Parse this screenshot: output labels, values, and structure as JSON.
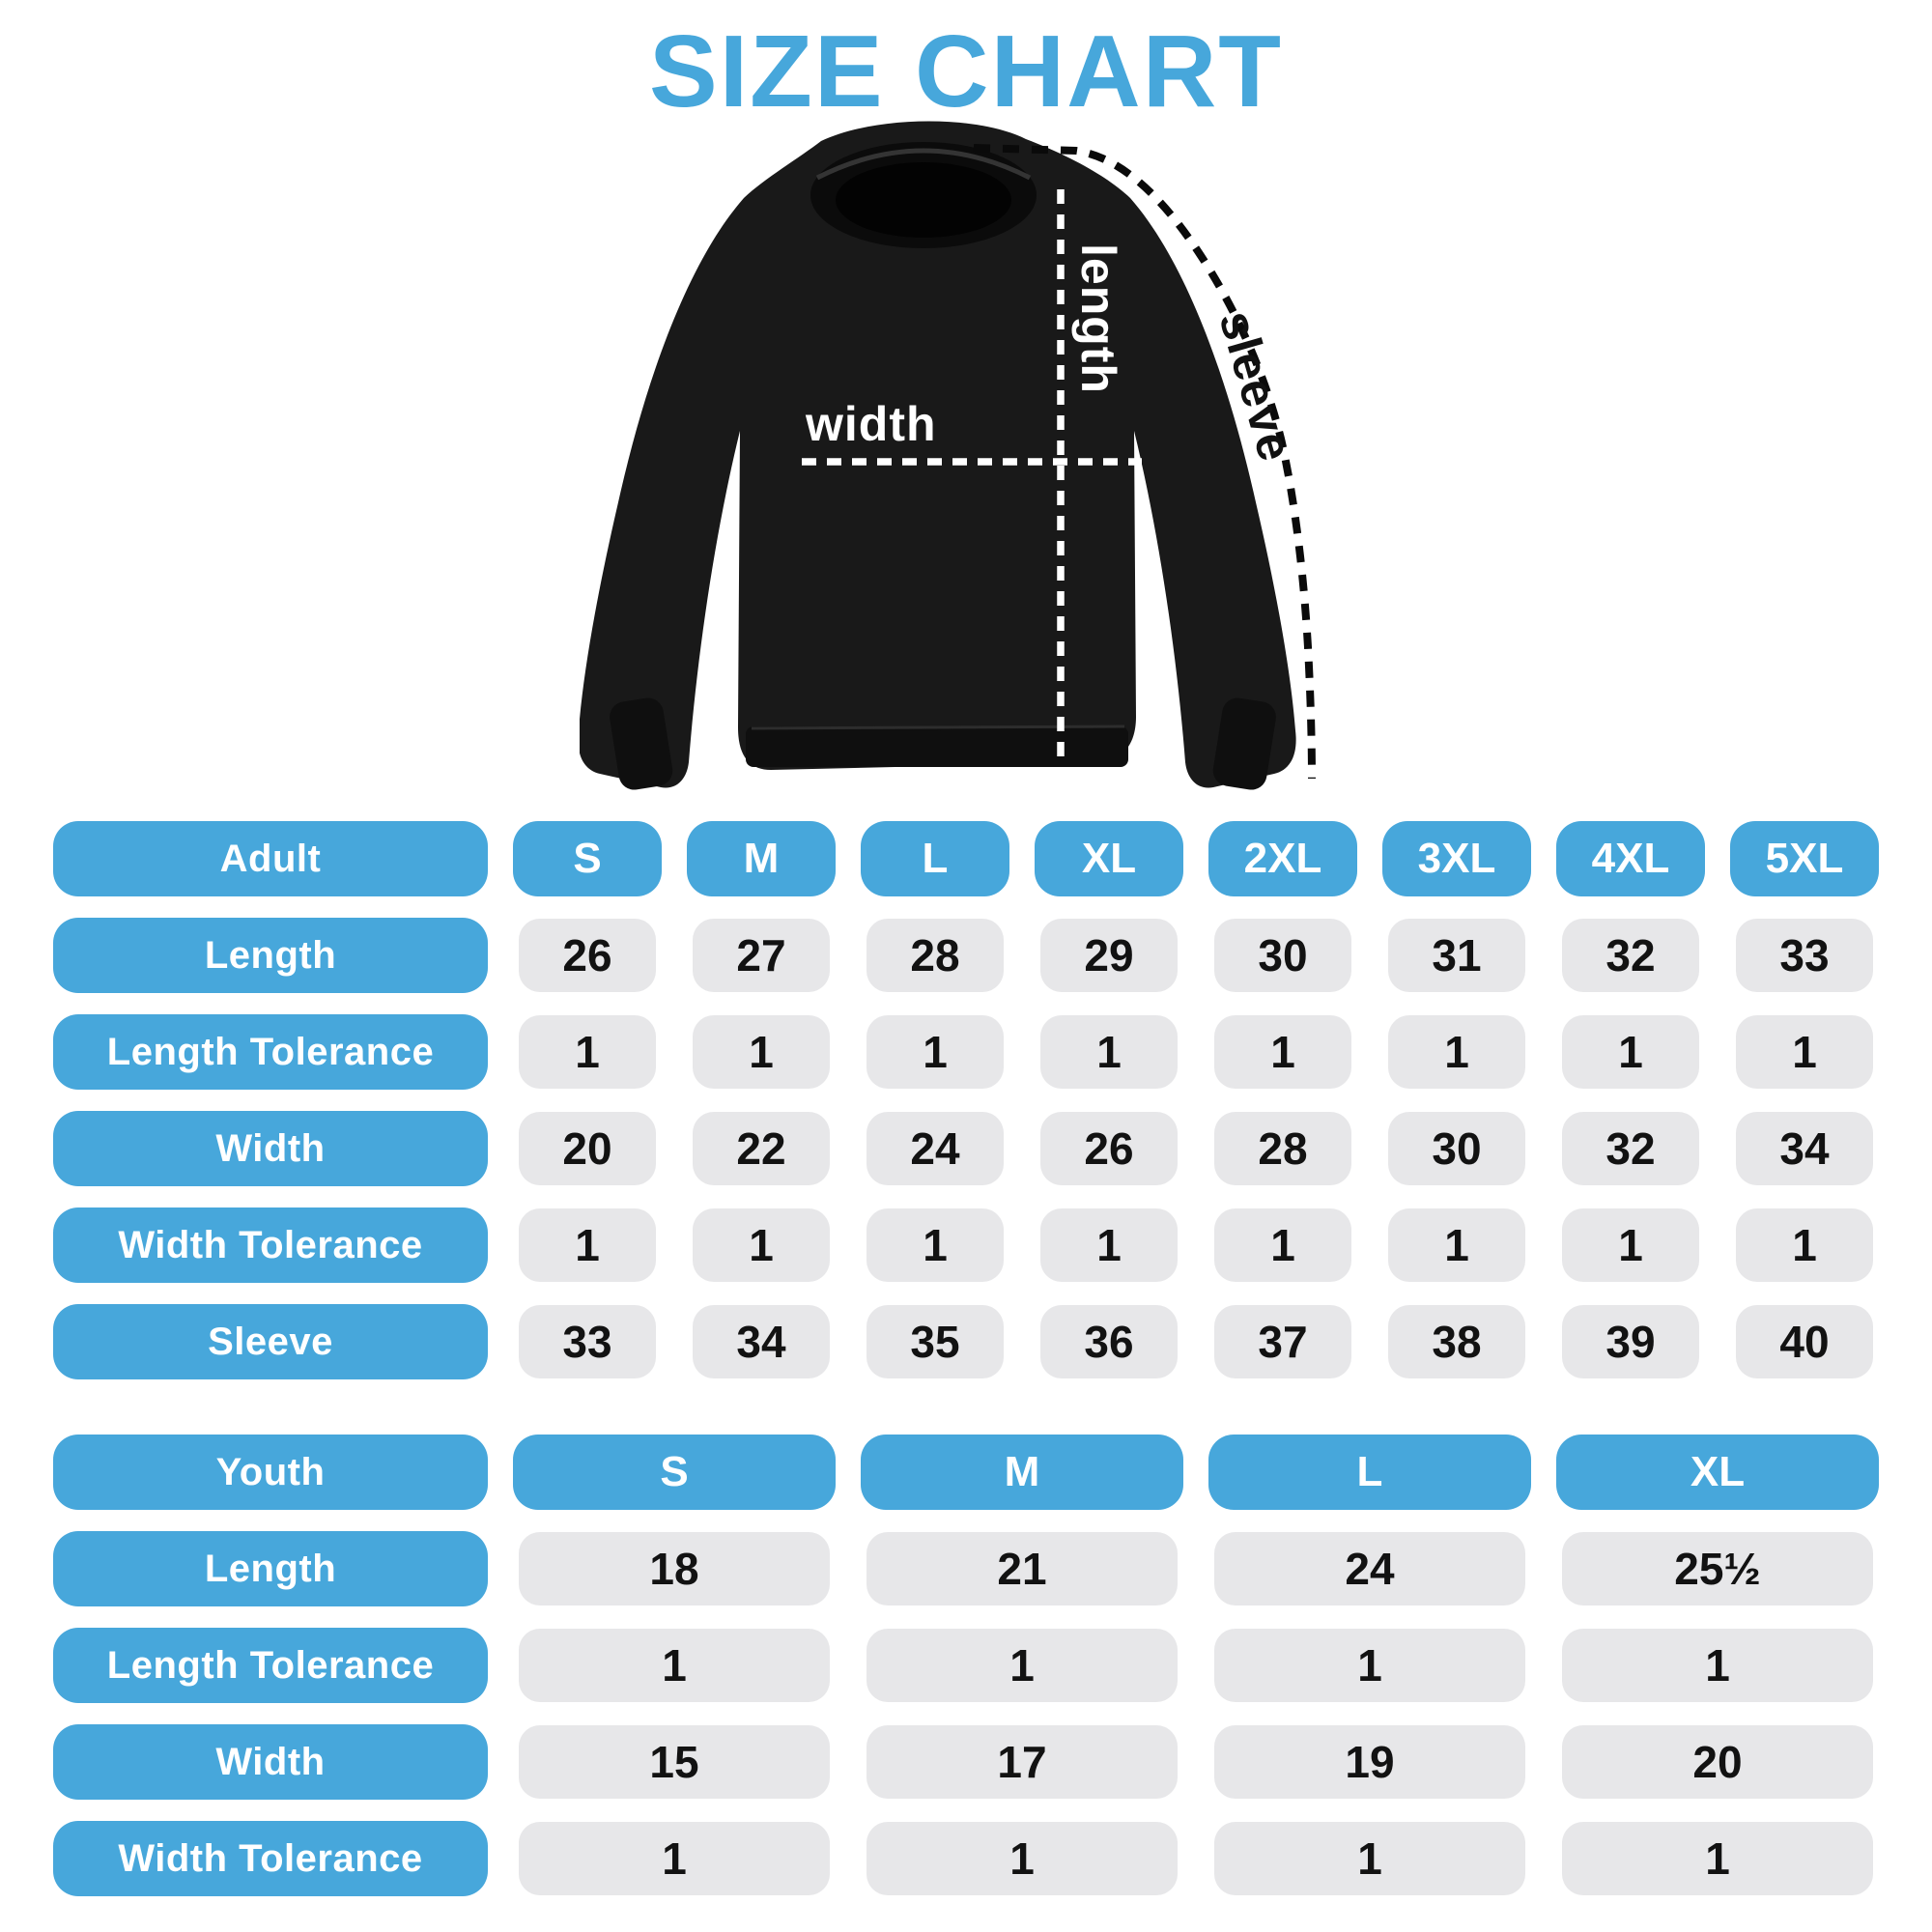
{
  "title": "SIZE CHART",
  "colors": {
    "accent_blue": "#47a7db",
    "cell_gray": "#e7e7e9",
    "number_black": "#121212",
    "shirt_black": "#191919"
  },
  "diagram": {
    "length_label": "length",
    "width_label": "width",
    "sleeve_label": "sleeve"
  },
  "chart_data": [
    {
      "type": "table",
      "title": "Adult",
      "columns": [
        "S",
        "M",
        "L",
        "XL",
        "2XL",
        "3XL",
        "4XL",
        "5XL"
      ],
      "rows": [
        {
          "label": "Length",
          "values": [
            26,
            27,
            28,
            29,
            30,
            31,
            32,
            33
          ]
        },
        {
          "label": "Length Tolerance",
          "values": [
            1,
            1,
            1,
            1,
            1,
            1,
            1,
            1
          ]
        },
        {
          "label": "Width",
          "values": [
            20,
            22,
            24,
            26,
            28,
            30,
            32,
            34
          ]
        },
        {
          "label": "Width Tolerance",
          "values": [
            1,
            1,
            1,
            1,
            1,
            1,
            1,
            1
          ]
        },
        {
          "label": "Sleeve",
          "values": [
            33,
            34,
            35,
            36,
            37,
            38,
            39,
            40
          ]
        }
      ]
    },
    {
      "type": "table",
      "title": "Youth",
      "columns": [
        "S",
        "M",
        "L",
        "XL"
      ],
      "rows": [
        {
          "label": "Length",
          "values": [
            18,
            21,
            24,
            "25½"
          ]
        },
        {
          "label": "Length Tolerance",
          "values": [
            1,
            1,
            1,
            1
          ]
        },
        {
          "label": "Width",
          "values": [
            15,
            17,
            19,
            20
          ]
        },
        {
          "label": "Width Tolerance",
          "values": [
            1,
            1,
            1,
            1
          ]
        }
      ]
    }
  ]
}
